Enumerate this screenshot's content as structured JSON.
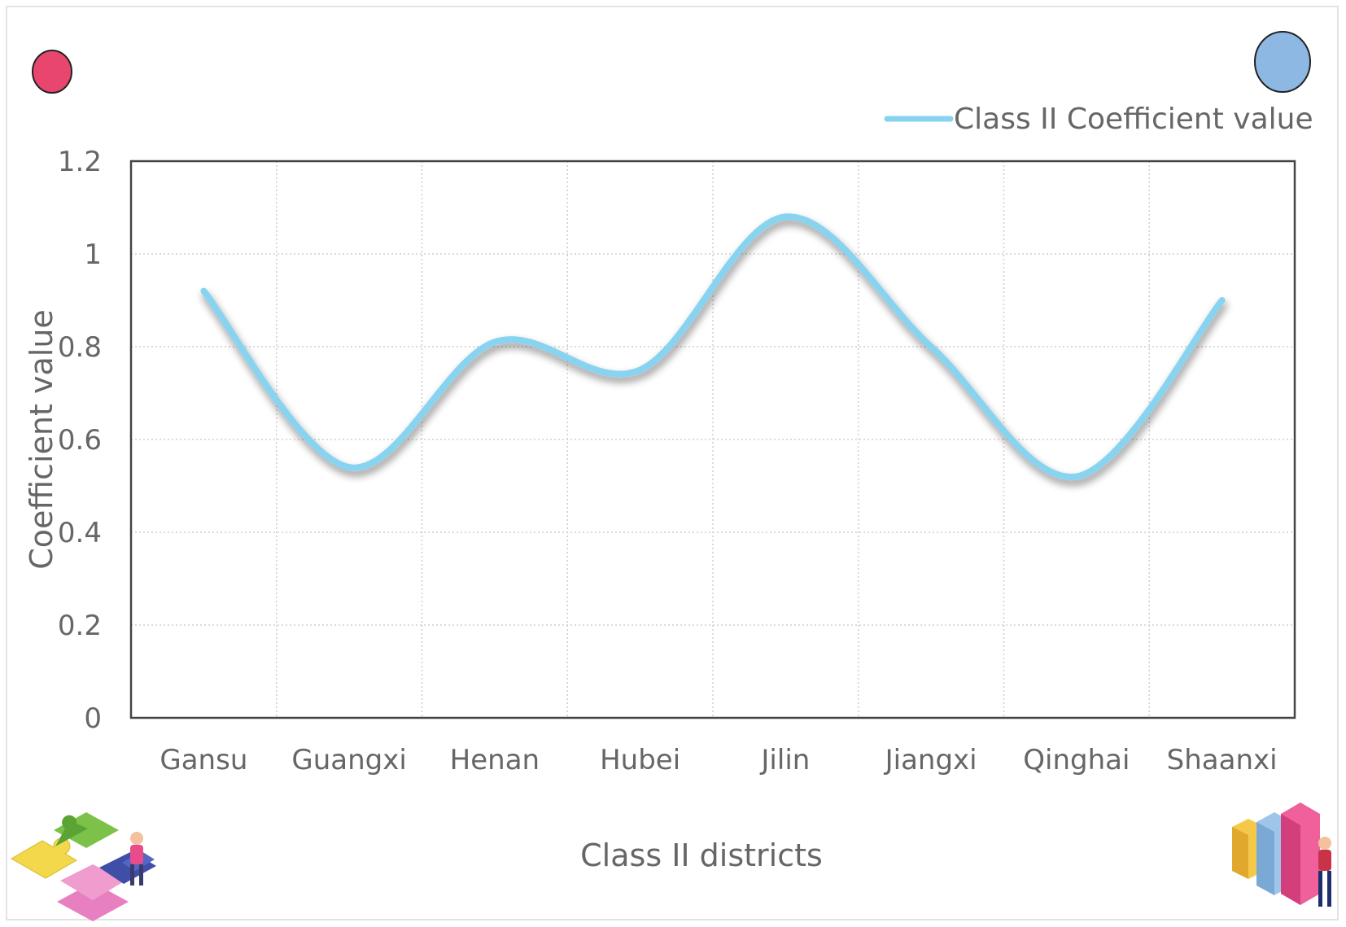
{
  "chart_data": {
    "type": "line",
    "smooth": true,
    "categories": [
      "Gansu",
      "Guangxi",
      "Henan",
      "Hubei",
      "Jilin",
      "Jiangxi",
      "Qinghai",
      "Shaanxi"
    ],
    "series": [
      {
        "name": "Class II Coefficient value",
        "values": [
          0.92,
          0.54,
          0.81,
          0.75,
          1.08,
          0.8,
          0.52,
          0.9
        ],
        "color": "#87d3f0"
      }
    ],
    "xlabel": "Class II districts",
    "ylabel": "Coefficient value",
    "ylim": [
      0,
      1.2
    ],
    "yticks": [
      "0",
      "0.2",
      "0.4",
      "0.6",
      "0.8",
      "1",
      "1.2"
    ],
    "grid": true,
    "legend_position": "top-right"
  },
  "decorations": {
    "top_left_circle_color": "#e8466e",
    "top_right_circle_color": "#8db8e3",
    "bottom_left_icon": "puzzle-pieces-people-icon",
    "bottom_right_icon": "bar-chart-person-icon"
  }
}
